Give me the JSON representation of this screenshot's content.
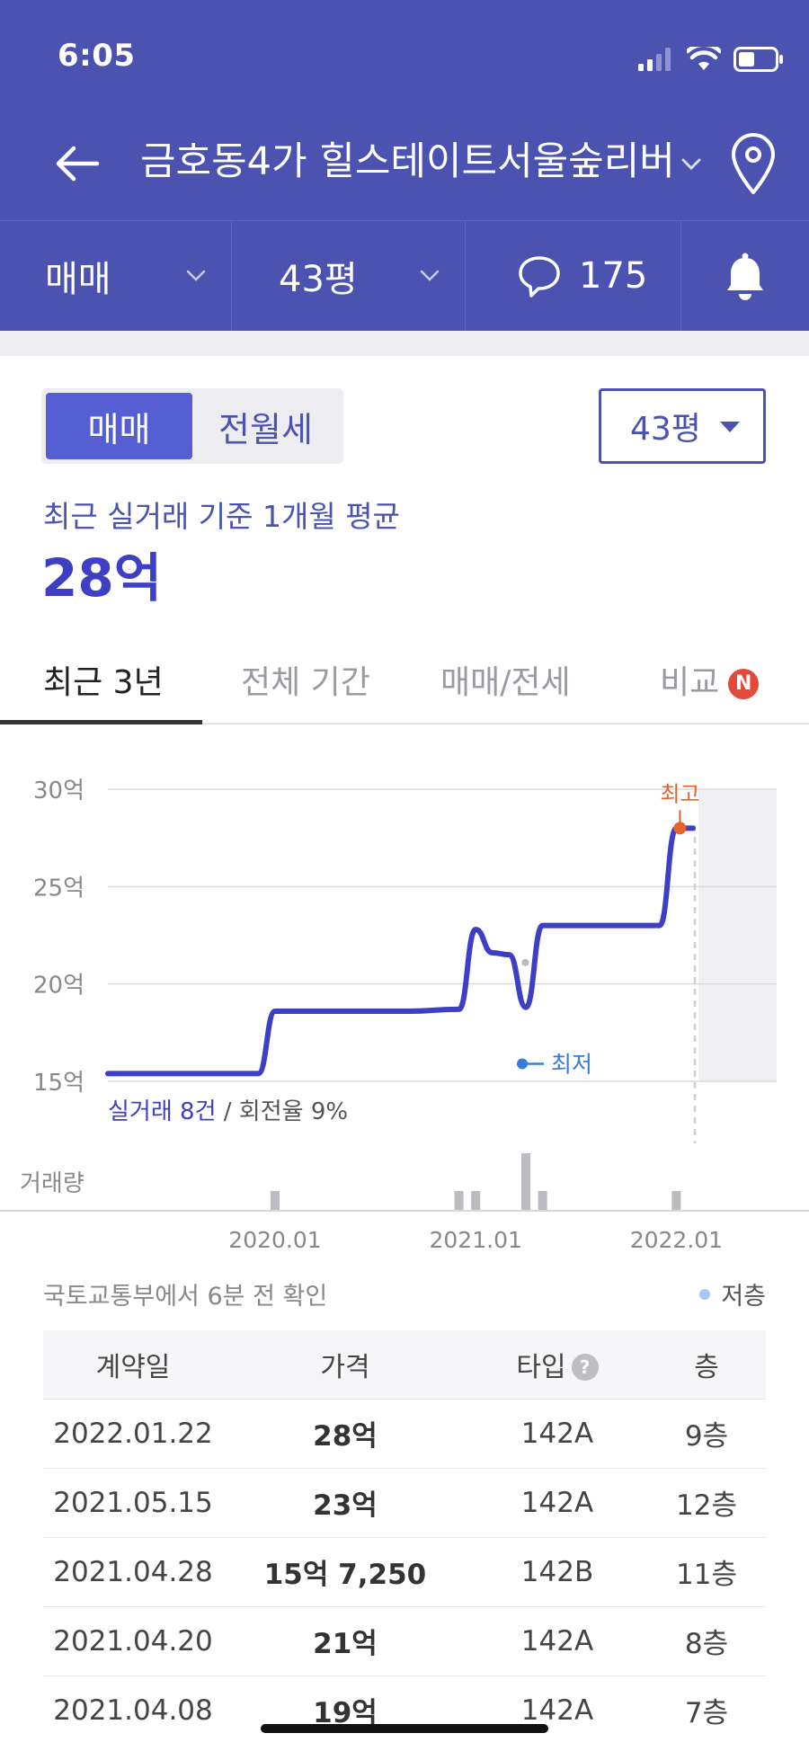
{
  "status_bar": {
    "time": "6:05"
  },
  "header": {
    "title": "금호동4가 힐스테이트서울숲리버",
    "filters": {
      "trade_type": "매매",
      "size": "43평",
      "comment_count": "175"
    }
  },
  "segment": {
    "options": [
      "매매",
      "전월세"
    ],
    "selected": "매매"
  },
  "size_select": {
    "value": "43평"
  },
  "summary": {
    "caption": "최근 실거래 기준 1개월 평균",
    "price": "28억"
  },
  "tabs": [
    "최근 3년",
    "전체 기간",
    "매매/전세",
    "비교"
  ],
  "tab_badge": "N",
  "chart_data": {
    "type": "line",
    "y_tick_labels": [
      "30억",
      "25억",
      "20억",
      "15억"
    ],
    "ylim": [
      15,
      30
    ],
    "y_unit": "억",
    "x_tick_labels": [
      "2020.01",
      "2021.01",
      "2022.01"
    ],
    "series": [
      {
        "values": [
          {
            "x": "2019.03",
            "y": 15.4
          },
          {
            "x": "2019.09",
            "y": 15.4
          },
          {
            "x": "2019.12",
            "y": 15.4
          },
          {
            "x": "2020.01",
            "y": 18.6
          },
          {
            "x": "2020.09",
            "y": 18.6
          },
          {
            "x": "2020.12",
            "y": 18.7
          },
          {
            "x": "2021.01",
            "y": 22.8
          },
          {
            "x": "2021.02",
            "y": 21.6
          },
          {
            "x": "2021.03",
            "y": 21.5
          },
          {
            "x": "2021.04",
            "y": 18.8
          },
          {
            "x": "2021.05",
            "y": 23.0
          },
          {
            "x": "2021.12",
            "y": 23.0
          },
          {
            "x": "2022.01",
            "y": 28.0
          },
          {
            "x": "2022.02",
            "y": 28.0
          }
        ]
      }
    ],
    "annotations": {
      "high_label": "최고",
      "low_label": "최저"
    },
    "volume": {
      "label": "거래량",
      "bars": [
        {
          "x": "2020.01",
          "count": 1
        },
        {
          "x": "2020.12",
          "count": 1
        },
        {
          "x": "2021.01",
          "count": 1
        },
        {
          "x": "2021.04",
          "count": 3
        },
        {
          "x": "2021.05",
          "count": 1
        },
        {
          "x": "2022.01",
          "count": 1
        }
      ]
    },
    "footnote_highlight": "실거래 8건",
    "footnote_rest": " / 회전율 9%"
  },
  "source": {
    "text": "국토교통부에서 6분 전 확인",
    "legend_low": "저층"
  },
  "table": {
    "headers": [
      "계약일",
      "가격",
      "타입",
      "층"
    ],
    "rows": [
      [
        "2022.01.22",
        "28억",
        "142A",
        "9층"
      ],
      [
        "2021.05.15",
        "23억",
        "142A",
        "12층"
      ],
      [
        "2021.04.28",
        "15억 7,250",
        "142B",
        "11층"
      ],
      [
        "2021.04.20",
        "21억",
        "142A",
        "8층"
      ],
      [
        "2021.04.08",
        "19억",
        "142A",
        "7층"
      ]
    ]
  },
  "colors": {
    "header_bg": "#4b52b0",
    "accent": "#3e3fc4",
    "high_marker": "#e8632c",
    "low_marker": "#3a7bd5"
  }
}
